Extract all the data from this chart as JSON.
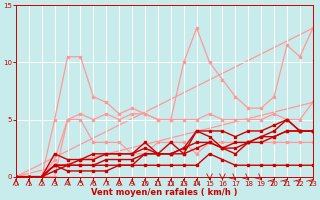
{
  "bg_color": "#c8ecec",
  "grid_color": "#ffffff",
  "xlabel": "Vent moyen/en rafales ( km/h )",
  "xlabel_color": "#cc0000",
  "tick_color": "#cc0000",
  "xlim": [
    0,
    23
  ],
  "ylim": [
    0,
    15
  ],
  "yticks": [
    0,
    5,
    10,
    15
  ],
  "xticks": [
    0,
    1,
    2,
    3,
    4,
    5,
    6,
    7,
    8,
    9,
    10,
    11,
    12,
    13,
    14,
    15,
    16,
    17,
    18,
    19,
    20,
    21,
    22,
    23
  ],
  "pink_color": "#ff9999",
  "red_color": "#cc0000",
  "trend1_y_end": 6.5,
  "trend2_y_end": 13.0,
  "line_pink1_y": [
    0,
    0,
    0,
    5,
    10.5,
    10.5,
    7,
    6.5,
    5.5,
    6,
    5.5,
    5,
    5,
    10,
    13,
    10,
    8.5,
    7,
    6,
    6,
    7,
    11.5,
    10.5,
    13
  ],
  "line_pink2_y": [
    0,
    0,
    0,
    1.5,
    5,
    5.5,
    5,
    5.5,
    5,
    5.5,
    5.5,
    5,
    5,
    5,
    5,
    5.5,
    5,
    5,
    5,
    5,
    5.5,
    5,
    5,
    6.5
  ],
  "line_pink3_y": [
    0,
    0,
    0,
    0,
    5,
    5,
    3,
    3,
    3,
    2,
    2,
    3,
    3,
    3,
    2,
    3,
    3,
    3,
    3,
    3,
    3,
    3,
    3,
    3
  ],
  "line_red1_y": [
    0,
    0,
    0,
    2,
    1.5,
    1.5,
    1.5,
    2,
    2,
    2,
    3,
    2,
    3,
    2,
    4,
    4,
    4,
    3.5,
    4,
    4,
    4.5,
    5,
    4,
    4
  ],
  "line_red2_y": [
    0,
    0,
    0,
    1,
    1,
    1.5,
    2,
    2,
    2,
    2,
    2.5,
    2,
    2,
    2.5,
    4,
    3.5,
    2.5,
    2,
    3,
    3.5,
    4,
    5,
    4,
    4
  ],
  "line_red3_y": [
    0,
    0,
    0,
    1,
    1,
    1,
    1,
    1.5,
    1.5,
    1.5,
    2,
    2,
    2,
    2.5,
    3,
    3,
    2.5,
    3,
    3,
    3.5,
    3.5,
    4,
    4,
    4
  ],
  "line_red4_y": [
    0,
    0,
    0,
    0.5,
    1,
    1,
    1,
    1,
    1,
    1,
    2,
    2,
    2,
    2,
    2.5,
    3,
    2.5,
    2.5,
    3,
    3,
    3.5,
    4,
    4,
    4
  ],
  "line_red5_y": [
    0,
    0,
    0,
    1,
    0.5,
    0.5,
    0.5,
    0.5,
    1,
    1,
    1,
    1,
    1,
    1,
    1,
    2,
    1.5,
    1,
    1,
    1,
    1,
    1,
    1,
    1
  ],
  "arrows": [
    180,
    180,
    180,
    180,
    180,
    180,
    180,
    180,
    180,
    180,
    180,
    180,
    180,
    180,
    180,
    0,
    0,
    45,
    45,
    45,
    135,
    135,
    135,
    135
  ]
}
